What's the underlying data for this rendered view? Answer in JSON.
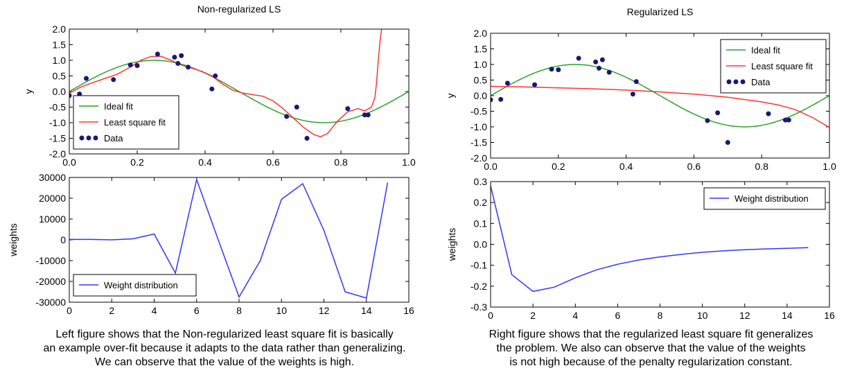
{
  "chart_data": [
    {
      "id": "tl",
      "type": "line",
      "title": "Non-regularized LS",
      "xlabel": "",
      "ylabel": "y",
      "xlim": [
        0,
        1
      ],
      "ylim": [
        -2,
        2
      ],
      "xticks": [
        "0.0",
        "0.2",
        "0.4",
        "0.6",
        "0.8",
        "1.0"
      ],
      "xtick_values": [
        0,
        0.2,
        0.4,
        0.6,
        0.8,
        1.0
      ],
      "yticks": [
        "-2.0",
        "-1.5",
        "-1.0",
        "-0.5",
        "0.0",
        "0.5",
        "1.0",
        "1.5",
        "2.0"
      ],
      "ytick_values": [
        -2,
        -1.5,
        -1,
        -0.5,
        0,
        0.5,
        1,
        1.5,
        2
      ],
      "grid": false,
      "legend_position": "lower-left",
      "series": [
        {
          "name": "Ideal fit",
          "kind": "line",
          "color": "#2ca02c",
          "function": "sin(2*pi*x)"
        },
        {
          "name": "Least square fit",
          "kind": "line",
          "color": "#ff3333",
          "x": [
            0.0,
            0.03,
            0.06,
            0.1,
            0.14,
            0.18,
            0.21,
            0.24,
            0.27,
            0.3,
            0.33,
            0.36,
            0.39,
            0.42,
            0.45,
            0.48,
            0.51,
            0.54,
            0.57,
            0.6,
            0.63,
            0.66,
            0.69,
            0.72,
            0.74,
            0.76,
            0.79,
            0.82,
            0.85,
            0.87,
            0.89,
            0.9,
            0.905,
            0.91,
            0.915,
            0.92
          ],
          "y": [
            -0.05,
            0.12,
            0.25,
            0.4,
            0.55,
            0.78,
            1.0,
            1.12,
            1.13,
            1.0,
            0.85,
            0.75,
            0.65,
            0.5,
            0.25,
            0.05,
            -0.05,
            -0.1,
            -0.15,
            -0.3,
            -0.55,
            -0.85,
            -1.15,
            -1.38,
            -1.45,
            -1.35,
            -0.95,
            -0.65,
            -0.55,
            -0.62,
            -0.5,
            -0.2,
            0.3,
            1.0,
            1.6,
            2.0
          ]
        },
        {
          "name": "Data",
          "kind": "scatter",
          "color": "#191970",
          "x": [
            0.0,
            0.03,
            0.05,
            0.13,
            0.18,
            0.2,
            0.26,
            0.31,
            0.32,
            0.33,
            0.35,
            0.42,
            0.43,
            0.64,
            0.67,
            0.7,
            0.82,
            0.87,
            0.88
          ],
          "y": [
            -0.13,
            -0.08,
            0.42,
            0.38,
            0.85,
            0.83,
            1.2,
            1.1,
            0.9,
            1.15,
            0.78,
            0.08,
            0.5,
            -0.8,
            -0.5,
            -1.5,
            -0.55,
            -0.75,
            -0.75
          ]
        }
      ]
    },
    {
      "id": "tr",
      "type": "line",
      "title": "Regularized LS",
      "xlabel": "",
      "ylabel": "y",
      "xlim": [
        0,
        1
      ],
      "ylim": [
        -2,
        2
      ],
      "xticks": [
        "0.0",
        "0.2",
        "0.4",
        "0.6",
        "0.8",
        "1.0"
      ],
      "xtick_values": [
        0,
        0.2,
        0.4,
        0.6,
        0.8,
        1.0
      ],
      "yticks": [
        "-2.0",
        "-1.5",
        "-1.0",
        "-0.5",
        "0.0",
        "0.5",
        "1.0",
        "1.5",
        "2.0"
      ],
      "ytick_values": [
        -2,
        -1.5,
        -1,
        -0.5,
        0,
        0.5,
        1,
        1.5,
        2
      ],
      "grid": false,
      "legend_position": "upper-right",
      "series": [
        {
          "name": "Ideal fit",
          "kind": "line",
          "color": "#2ca02c",
          "function": "sin(2*pi*x)"
        },
        {
          "name": "Least square fit",
          "kind": "line",
          "color": "#ff3333",
          "x": [
            0.0,
            0.1,
            0.2,
            0.3,
            0.4,
            0.5,
            0.6,
            0.7,
            0.8,
            0.85,
            0.9,
            0.95,
            1.0
          ],
          "y": [
            0.3,
            0.28,
            0.25,
            0.22,
            0.18,
            0.12,
            0.05,
            -0.05,
            -0.2,
            -0.3,
            -0.45,
            -0.7,
            -1.02
          ]
        },
        {
          "name": "Data",
          "kind": "scatter",
          "color": "#191970",
          "x": [
            0.0,
            0.03,
            0.05,
            0.13,
            0.18,
            0.2,
            0.26,
            0.31,
            0.32,
            0.33,
            0.35,
            0.42,
            0.43,
            0.64,
            0.67,
            0.7,
            0.82,
            0.87,
            0.88
          ],
          "y": [
            -0.13,
            -0.12,
            0.4,
            0.35,
            0.85,
            0.83,
            1.2,
            1.08,
            0.88,
            1.15,
            0.75,
            0.05,
            0.45,
            -0.8,
            -0.55,
            -1.5,
            -0.58,
            -0.78,
            -0.78
          ]
        }
      ]
    },
    {
      "id": "bl",
      "type": "line",
      "title": "",
      "xlabel": "",
      "ylabel": "weights",
      "xlim": [
        0,
        16
      ],
      "ylim": [
        -30000,
        30000
      ],
      "xticks": [
        "0",
        "2",
        "4",
        "6",
        "8",
        "10",
        "12",
        "14",
        "16"
      ],
      "xtick_values": [
        0,
        2,
        4,
        6,
        8,
        10,
        12,
        14,
        16
      ],
      "yticks": [
        "-30000",
        "-20000",
        "-10000",
        "0",
        "10000",
        "20000",
        "30000"
      ],
      "ytick_values": [
        -30000,
        -20000,
        -10000,
        0,
        10000,
        20000,
        30000
      ],
      "grid": false,
      "legend_position": "lower-left",
      "series": [
        {
          "name": "Weight distribution",
          "kind": "line",
          "color": "#3333ff",
          "x": [
            0,
            1,
            2,
            3,
            4,
            5,
            6,
            7,
            8,
            9,
            10,
            11,
            12,
            13,
            14,
            15
          ],
          "y": [
            200,
            200,
            0,
            500,
            2800,
            -16000,
            29000,
            500,
            -27500,
            -10000,
            19500,
            27000,
            4500,
            -25000,
            -28000,
            27500
          ]
        }
      ]
    },
    {
      "id": "br",
      "type": "line",
      "title": "",
      "xlabel": "",
      "ylabel": "weights",
      "xlim": [
        0,
        16
      ],
      "ylim": [
        -0.3,
        0.3
      ],
      "xticks": [
        "0",
        "2",
        "4",
        "6",
        "8",
        "10",
        "12",
        "14",
        "16"
      ],
      "xtick_values": [
        0,
        2,
        4,
        6,
        8,
        10,
        12,
        14,
        16
      ],
      "yticks": [
        "-0.3",
        "-0.2",
        "-0.1",
        "0.0",
        "0.1",
        "0.2",
        "0.3"
      ],
      "ytick_values": [
        -0.3,
        -0.2,
        -0.1,
        0,
        0.1,
        0.2,
        0.3
      ],
      "grid": false,
      "legend_position": "upper-right",
      "series": [
        {
          "name": "Weight distribution",
          "kind": "line",
          "color": "#3333ff",
          "x": [
            0,
            1,
            2,
            3,
            4,
            5,
            6,
            7,
            8,
            9,
            10,
            11,
            12,
            13,
            14,
            15
          ],
          "y": [
            0.28,
            -0.145,
            -0.225,
            -0.205,
            -0.16,
            -0.122,
            -0.095,
            -0.075,
            -0.06,
            -0.048,
            -0.038,
            -0.031,
            -0.026,
            -0.022,
            -0.019,
            -0.016
          ]
        }
      ]
    }
  ],
  "captions": {
    "left": [
      "Left figure shows that the Non-regularized least square fit is basically",
      "an example over-fit because it adapts to the data rather than generalizing.",
      "We can observe that the value of the weights is high."
    ],
    "right": [
      "Right  figure shows that the regularized least square fit generalizes",
      "the problem. We also can observe that the value of the weights",
      "is not high because of the penalty regularization constant."
    ]
  }
}
